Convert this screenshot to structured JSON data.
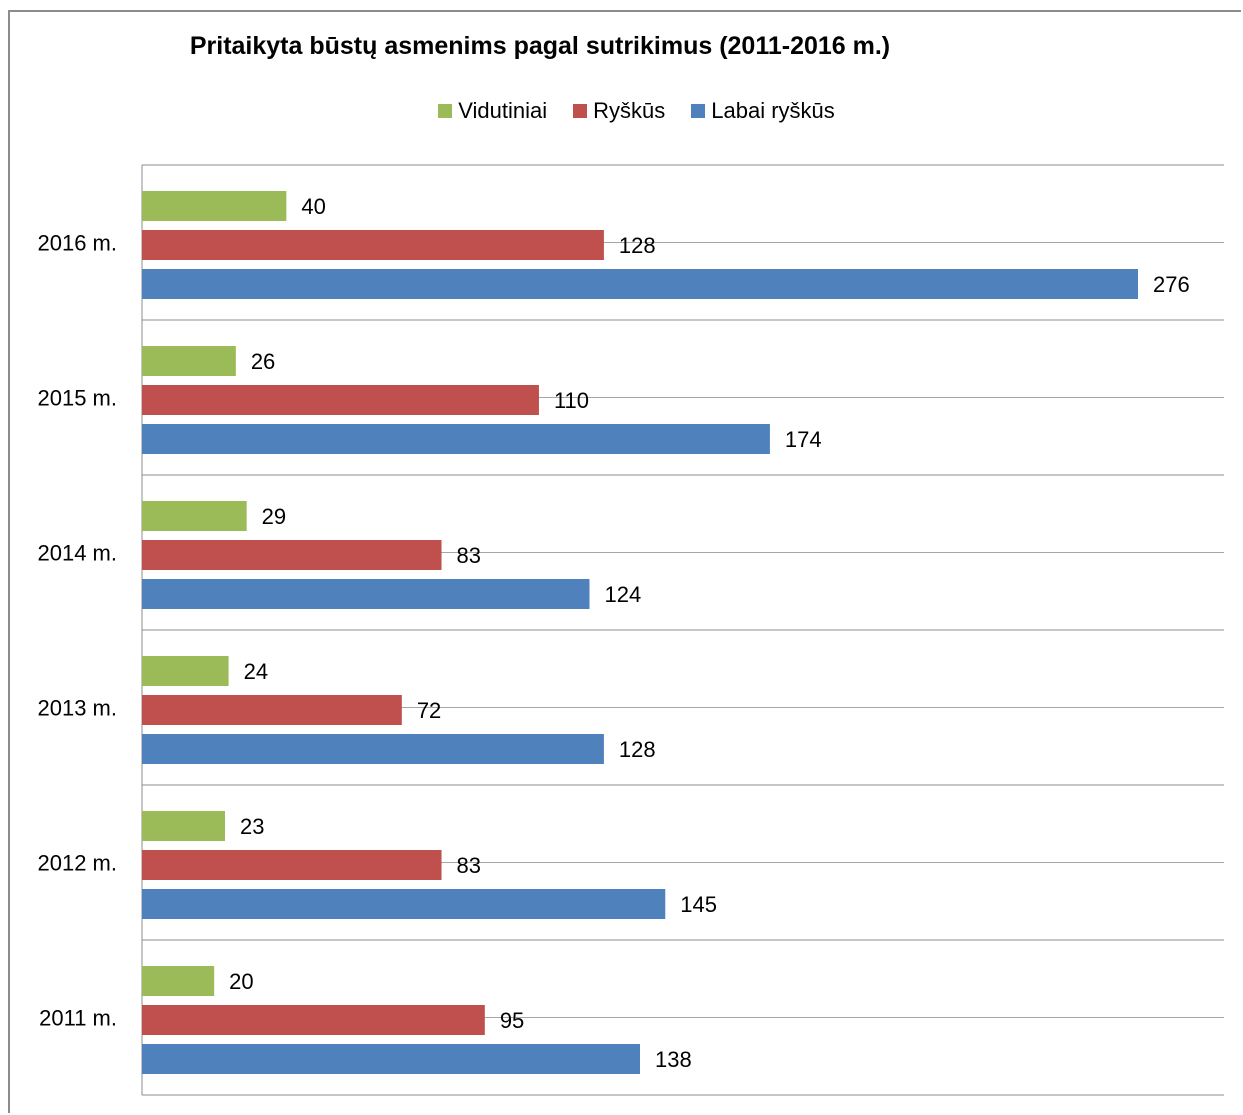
{
  "chart_data": {
    "type": "bar",
    "orientation": "horizontal",
    "title": "Pritaikyta būstų asmenims pagal sutrikimus (2011-2016 m.)",
    "categories": [
      "2016 m.",
      "2015 m.",
      "2014 m.",
      "2013 m.",
      "2012 m.",
      "2011 m."
    ],
    "series": [
      {
        "name": "Vidutiniai",
        "color": "#9bbb59",
        "values": [
          40,
          26,
          29,
          24,
          23,
          20
        ]
      },
      {
        "name": "Ryškūs",
        "color": "#c0504d",
        "values": [
          128,
          110,
          83,
          72,
          83,
          95
        ]
      },
      {
        "name": "Labai ryškūs",
        "color": "#4f81bd",
        "values": [
          276,
          174,
          124,
          128,
          145,
          138
        ]
      }
    ],
    "legend_position": "top",
    "grid": true,
    "xlim": [
      0,
      300
    ]
  }
}
